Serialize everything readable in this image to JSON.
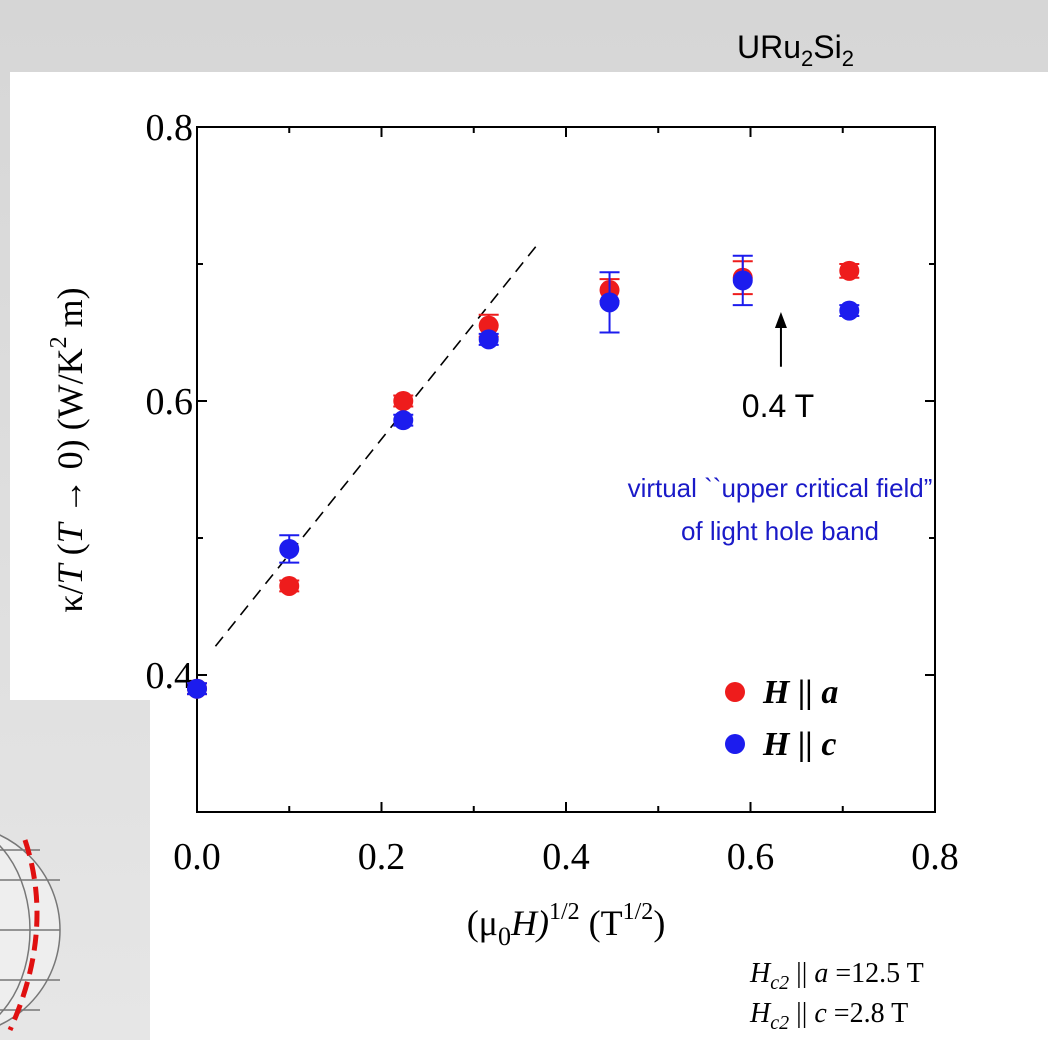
{
  "chart_data": {
    "type": "scatter",
    "title_parts": [
      "URu",
      "2",
      "Si",
      "2"
    ],
    "x_label_parts": [
      "(μ",
      "0",
      "H)",
      "1/2",
      "  (T",
      "1/2",
      ")"
    ],
    "y_label_parts": [
      "κ/",
      "T",
      " (",
      "T",
      " → 0)  (W/K",
      "2",
      " m)"
    ],
    "xlim": [
      0,
      0.8
    ],
    "ylim": [
      0.3,
      0.8
    ],
    "xticks": [
      {
        "value": 0,
        "label": "0.0"
      },
      0.2,
      0.4,
      0.6,
      0.8
    ],
    "yticks": [
      0.4,
      0.6,
      0.8
    ],
    "x_minor_ticks": [
      0.1,
      0.3,
      0.5,
      0.7
    ],
    "y_minor_ticks": [
      0.5,
      0.7
    ],
    "legend": "lower right",
    "series": [
      {
        "name": "H || a",
        "color": "#ee1c1c",
        "x": [
          0,
          0.1,
          0.2236,
          0.3162,
          0.4472,
          0.5916,
          0.7071
        ],
        "values": [
          0.39,
          0.465,
          0.6,
          0.655,
          0.681,
          0.69,
          0.695
        ],
        "errors": [
          0.004,
          0.004,
          0.004,
          0.008,
          0.008,
          0.012,
          0.005
        ]
      },
      {
        "name": "H || c",
        "color": "#1c1cee",
        "x": [
          0,
          0.1,
          0.2236,
          0.3162,
          0.4472,
          0.5916,
          0.7071
        ],
        "values": [
          0.39,
          0.492,
          0.586,
          0.645,
          0.672,
          0.688,
          0.666
        ],
        "errors": [
          0.004,
          0.01,
          0.004,
          0.004,
          0.022,
          0.018,
          0.004
        ]
      }
    ],
    "fit_line": {
      "x": [
        0.02,
        0.37
      ],
      "values": [
        0.421,
        0.715
      ]
    },
    "arrow_annotation": {
      "label": "0.4 T",
      "x": 0.633,
      "from": 0.625,
      "to": 0.665
    },
    "note_lines": [
      "virtual ``upper critical field”",
      "of light hole band"
    ],
    "hc2_a_parts": [
      "H",
      "c2",
      " || ",
      "a",
      " =12.5 T"
    ],
    "hc2_c_parts": [
      "H",
      "c2",
      " || ",
      "c",
      " =2.8 T"
    ]
  }
}
